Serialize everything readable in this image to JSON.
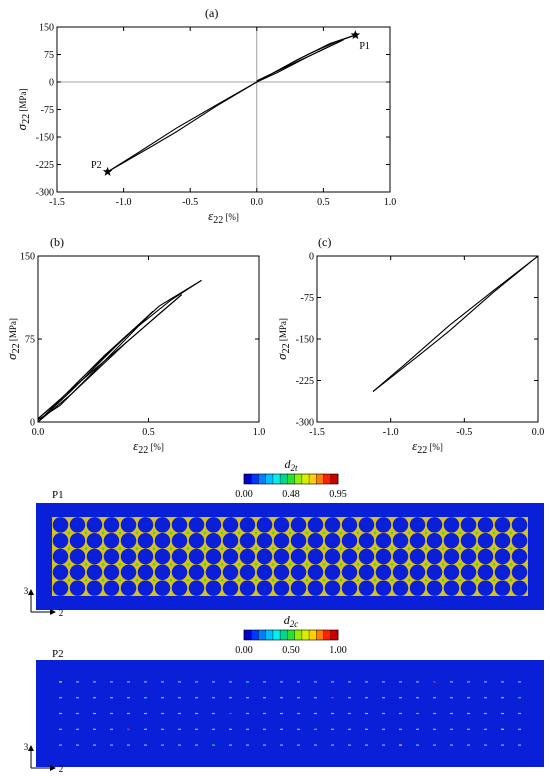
{
  "chart_data": [
    {
      "id": "a",
      "type": "line",
      "panel_label": "(a)",
      "xlabel": "ε22 [%]",
      "ylabel": "σ22 [MPa]",
      "xlim": [
        -1.5,
        1.0
      ],
      "ylim": [
        -300,
        150
      ],
      "xticks": [
        -1.5,
        -1.0,
        -0.5,
        0.0,
        0.5,
        1.0
      ],
      "xtick_labels": [
        "-1.5",
        "-1.0",
        "-0.5",
        "0.0",
        "0.5",
        "1.0"
      ],
      "yticks": [
        -300,
        -225,
        -150,
        -75,
        0,
        75,
        150
      ],
      "ytick_labels": [
        "-300",
        "-225",
        "-150",
        "-75",
        "0",
        "75",
        "150"
      ],
      "zero_lines": true,
      "series": [
        {
          "x": [
            0,
            0.2,
            0.4,
            0.6,
            0.74
          ],
          "y": [
            0,
            40,
            78,
            110,
            128
          ]
        },
        {
          "x": [
            0.74,
            0.55,
            0.3,
            0.1,
            0
          ],
          "y": [
            128,
            105,
            60,
            20,
            3
          ]
        },
        {
          "x": [
            0,
            0.2,
            0.4,
            0.55,
            0.65
          ],
          "y": [
            3,
            38,
            72,
            98,
            115
          ]
        },
        {
          "x": [
            0.65,
            0.4,
            0.15,
            0
          ],
          "y": [
            115,
            72,
            25,
            0
          ]
        },
        {
          "x": [
            0,
            -0.3,
            -0.6,
            -0.9,
            -1.12
          ],
          "y": [
            0,
            -62,
            -125,
            -195,
            -245
          ]
        },
        {
          "x": [
            -1.12,
            -0.8,
            -0.6,
            -0.3,
            0
          ],
          "y": [
            -245,
            -178,
            -135,
            -65,
            0
          ]
        }
      ],
      "markers": [
        {
          "label": "P1",
          "x": 0.74,
          "y": 128
        },
        {
          "label": "P2",
          "x": -1.12,
          "y": -245
        }
      ]
    },
    {
      "id": "b",
      "type": "line",
      "panel_label": "(b)",
      "xlabel": "ε22 [%]",
      "ylabel": "σ22 [MPa]",
      "xlim": [
        0.0,
        1.0
      ],
      "ylim": [
        0,
        150
      ],
      "xticks": [
        0.0,
        0.5,
        1.0
      ],
      "xtick_labels": [
        "0.0",
        "0.5",
        "1.0"
      ],
      "yticks": [
        0,
        75,
        150
      ],
      "ytick_labels": [
        "0",
        "75",
        "150"
      ],
      "series": [
        {
          "x": [
            0,
            0.2,
            0.4,
            0.6,
            0.74
          ],
          "y": [
            0,
            40,
            78,
            110,
            128
          ]
        },
        {
          "x": [
            0.74,
            0.55,
            0.3,
            0.1,
            0
          ],
          "y": [
            128,
            105,
            60,
            20,
            3
          ]
        },
        {
          "x": [
            0,
            0.2,
            0.4,
            0.55,
            0.65
          ],
          "y": [
            3,
            38,
            72,
            98,
            115
          ]
        },
        {
          "x": [
            0.65,
            0.4,
            0.15,
            0
          ],
          "y": [
            115,
            72,
            25,
            0
          ]
        },
        {
          "x": [
            0,
            0.15,
            0.35,
            0.52
          ],
          "y": [
            0,
            28,
            68,
            100
          ]
        },
        {
          "x": [
            0.52,
            0.3,
            0.1,
            0
          ],
          "y": [
            100,
            55,
            15,
            2
          ]
        }
      ]
    },
    {
      "id": "c",
      "type": "line",
      "panel_label": "(c)",
      "xlabel": "ε22 [%]",
      "ylabel": "σ22 [MPa]",
      "xlim": [
        -1.5,
        0.0
      ],
      "ylim": [
        -300,
        0
      ],
      "xticks": [
        -1.5,
        -1.0,
        -0.5,
        0.0
      ],
      "xtick_labels": [
        "-1.5",
        "-1.0",
        "-0.5",
        "0.0"
      ],
      "yticks": [
        -300,
        -225,
        -150,
        -75,
        0
      ],
      "ytick_labels": [
        "-300",
        "-225",
        "-150",
        "-75",
        "0"
      ],
      "series": [
        {
          "x": [
            0,
            -0.3,
            -0.6,
            -0.9,
            -1.12
          ],
          "y": [
            0,
            -62,
            -125,
            -195,
            -245
          ]
        },
        {
          "x": [
            -1.12,
            -0.8,
            -0.6,
            -0.3,
            0
          ],
          "y": [
            -245,
            -178,
            -135,
            -65,
            0
          ]
        }
      ]
    },
    {
      "id": "p1",
      "type": "heatmap",
      "panel_label": "P1",
      "colorbar_label": "d2t",
      "colorbar_ticks": [
        "0.00",
        "0.48",
        "0.95"
      ],
      "colorbar_min": 0.0,
      "colorbar_max": 0.95,
      "axis_labels": [
        "3",
        "2"
      ],
      "grid": {
        "rows": 5,
        "cols": 28
      }
    },
    {
      "id": "p2",
      "type": "heatmap",
      "panel_label": "P2",
      "colorbar_label": "d2c",
      "colorbar_ticks": [
        "0.00",
        "0.50",
        "1.00"
      ],
      "colorbar_min": 0.0,
      "colorbar_max": 1.0,
      "axis_labels": [
        "3",
        "2"
      ],
      "grid": {
        "rows": 5,
        "cols": 28
      }
    }
  ],
  "colors": {
    "line": "#000000",
    "field_blue": "#0a20d8",
    "hot_spot": "#d8c020",
    "colormap": [
      "#0000c8",
      "#0038ff",
      "#0080ff",
      "#00c0ff",
      "#00f0f0",
      "#00d890",
      "#30e030",
      "#90f000",
      "#d8f000",
      "#ffd000",
      "#ff8000",
      "#ff2000",
      "#c80000"
    ]
  }
}
